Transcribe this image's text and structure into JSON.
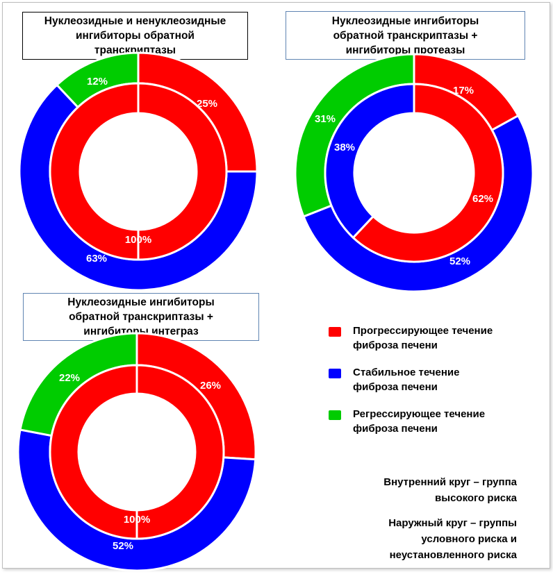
{
  "chart_data": [
    {
      "type": "donut",
      "title": "Нуклеозидные и ненуклеозидные ингибиторы обратной транскриптазы",
      "outer": [
        {
          "category": "Прогрессирующее течение фиброза печени",
          "value": 25,
          "label": "25%"
        },
        {
          "category": "Стабильное течение фиброза печени",
          "value": 63,
          "label": "63%"
        },
        {
          "category": "Регрессирующее течение фиброза печени",
          "value": 12,
          "label": "12%"
        }
      ],
      "inner": [
        {
          "category": "Прогрессирующее течение фиброза печени",
          "value": 100,
          "label": "100%"
        }
      ]
    },
    {
      "type": "donut",
      "title": "Нуклеозидные ингибиторы обратной транскриптазы + ингибиторы протеазы",
      "outer": [
        {
          "category": "Прогрессирующее течение фиброза печени",
          "value": 17,
          "label": "17%"
        },
        {
          "category": "Стабильное течение фиброза печени",
          "value": 52,
          "label": "52%"
        },
        {
          "category": "Регрессирующее течение фиброза печени",
          "value": 31,
          "label": "31%"
        }
      ],
      "inner": [
        {
          "category": "Прогрессирующее течение фиброза печени",
          "value": 62,
          "label": "62%"
        },
        {
          "category": "Стабильное течение фиброза печени",
          "value": 38,
          "label": "38%"
        }
      ]
    },
    {
      "type": "donut",
      "title": "Нуклеозидные ингибиторы обратной транскриптазы + ингибиторы интеграз",
      "outer": [
        {
          "category": "Прогрессирующее течение фиброза печени",
          "value": 26,
          "label": "26%"
        },
        {
          "category": "Стабильное течение фиброза печени",
          "value": 52,
          "label": "52%"
        },
        {
          "category": "Регрессирующее течение фиброза печени",
          "value": 22,
          "label": "22%"
        }
      ],
      "inner": [
        {
          "category": "Прогрессирующее течение фиброза печени",
          "value": 100,
          "label": "100%"
        }
      ]
    }
  ],
  "titles": {
    "chart1": "Нуклеозидные и ненуклеозидные\nингибиторы обратной\nтранскриптазы",
    "chart2": "Нуклеозидные ингибиторы\nобратной транскриптазы +\nингибиторы протеазы",
    "chart3": "Нуклеозидные ингибиторы\nобратной транскриптазы +\nингибиторы интеграз"
  },
  "legend": {
    "progressive": "Прогрессирующее течение\nфиброза печени",
    "stable": "Стабильное течение\nфиброза печени",
    "regressive": "Регрессирующее течение\nфиброза печени"
  },
  "notes": {
    "inner": "Внутренний круг – группа\nвысокого риска",
    "outer": "Наружный круг – группы\nусловного риска и\nнеустановленного риска"
  },
  "colors": {
    "progressive": "#ff0000",
    "stable": "#0000ff",
    "regressive": "#00cc00",
    "border": "#5f84b2"
  }
}
